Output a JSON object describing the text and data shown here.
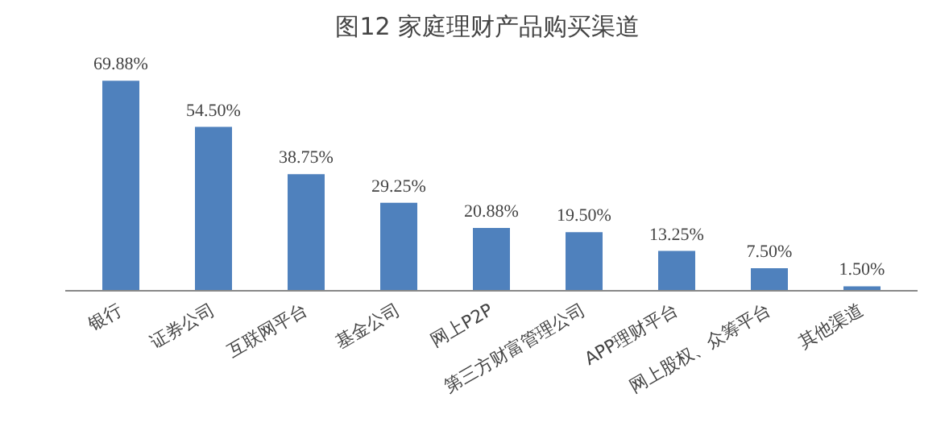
{
  "chart_data": {
    "type": "bar",
    "title": "图12  家庭理财产品购买渠道",
    "categories": [
      "银行",
      "证券公司",
      "互联网平台",
      "基金公司",
      "网上P2P",
      "第三方财富管理公司",
      "APP理财平台",
      "网上股权、众筹平台",
      "其他渠道"
    ],
    "values": [
      69.88,
      54.5,
      38.75,
      29.25,
      20.88,
      19.5,
      13.25,
      7.5,
      1.5
    ],
    "value_labels": [
      "69.88%",
      "54.50%",
      "38.75%",
      "29.25%",
      "20.88%",
      "19.50%",
      "13.25%",
      "7.50%",
      "1.50%"
    ],
    "color": "#4f81bd",
    "grid": false
  }
}
